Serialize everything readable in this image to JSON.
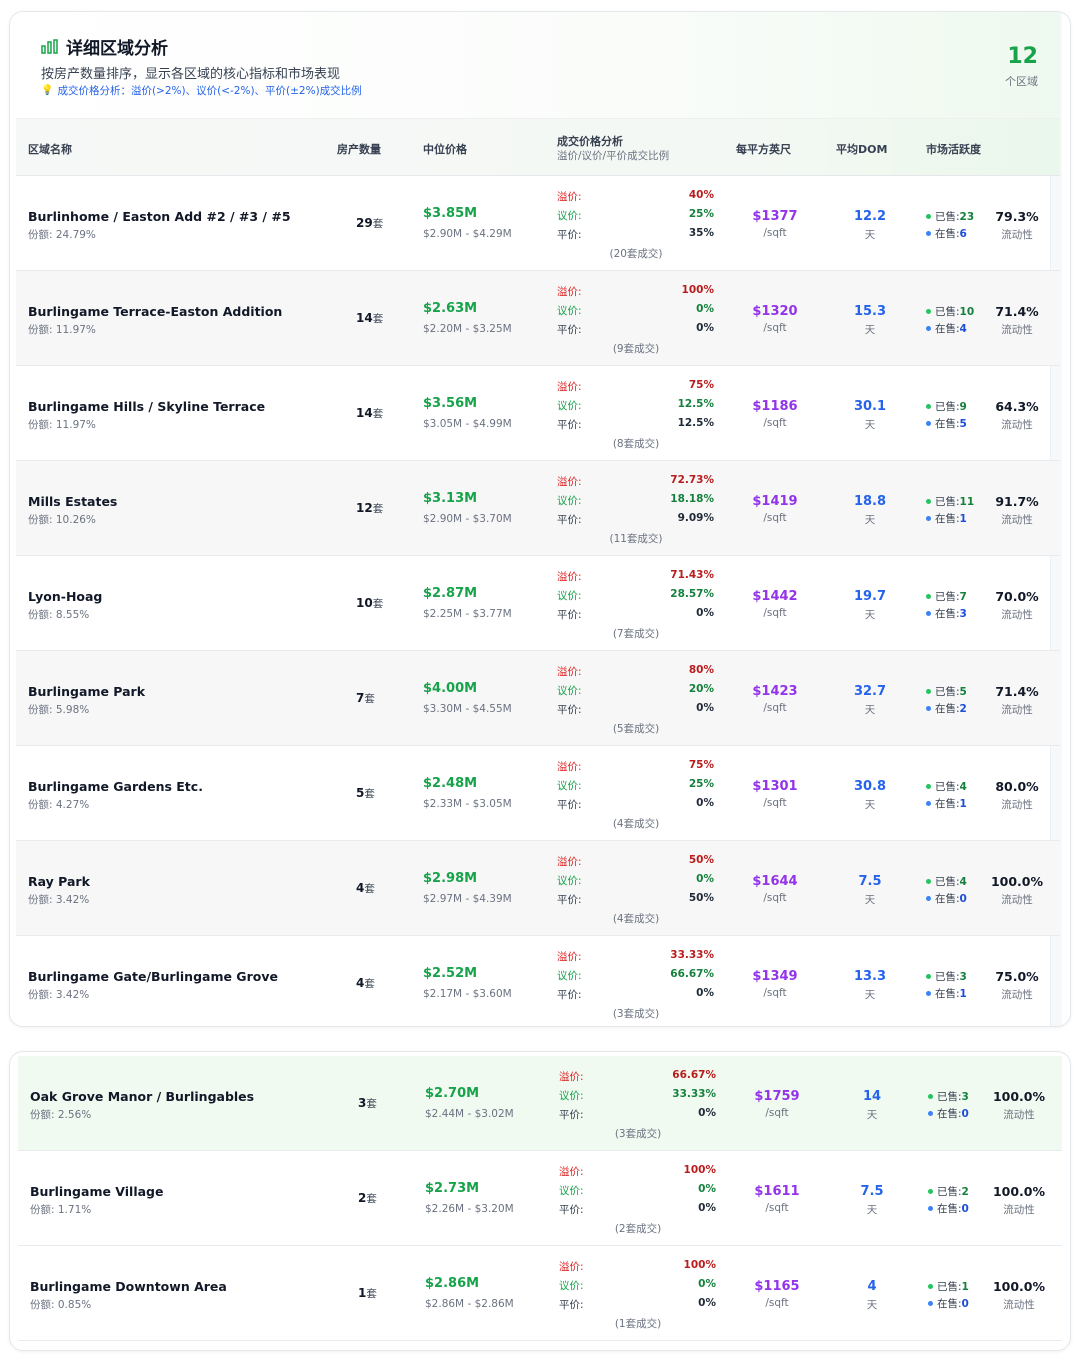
{
  "header": {
    "title": "详细区域分析",
    "subtitle": "按房产数量排序，显示各区域的核心指标和市场表现",
    "hint": "成交价格分析：溢价(>2%)、议价(<-2%)、平价(±2%)成交比例",
    "count": "12",
    "count_label": "个区域"
  },
  "columns": {
    "name": "区域名称",
    "count": "房产数量",
    "median": "中位价格",
    "price_analysis": "成交价格分析",
    "price_analysis_sub": "溢价/议价/平价成交比例",
    "ppsf": "每平方英尺",
    "dom": "平均DOM",
    "activity": "市场活跃度"
  },
  "labels": {
    "premium": "溢价:",
    "discount": "议价:",
    "par": "平价:",
    "count_unit": "套",
    "ppsf_unit": "/sqft",
    "dom_unit": "天",
    "sold": "已售:",
    "active": "在售:",
    "liquidity": "流动性"
  },
  "rows": [
    {
      "name": "Burlinhome / Easton Add #2 / #3 / #5",
      "share": "份额: 24.79%",
      "count": "29",
      "median": "$3.85M",
      "range": "$2.90M - $4.29M",
      "premium": "40%",
      "discount": "25%",
      "par": "35%",
      "deals": "(20套成交)",
      "ppsf": "$1377",
      "dom": "12.2",
      "sold": "23",
      "active": "6",
      "liquidity": "79.3%"
    },
    {
      "name": "Burlingame Terrace-Easton Addition",
      "share": "份额: 11.97%",
      "count": "14",
      "median": "$2.63M",
      "range": "$2.20M - $3.25M",
      "premium": "100%",
      "discount": "0%",
      "par": "0%",
      "deals": "(9套成交)",
      "ppsf": "$1320",
      "dom": "15.3",
      "sold": "10",
      "active": "4",
      "liquidity": "71.4%"
    },
    {
      "name": "Burlingame Hills / Skyline Terrace",
      "share": "份额: 11.97%",
      "count": "14",
      "median": "$3.56M",
      "range": "$3.05M - $4.99M",
      "premium": "75%",
      "discount": "12.5%",
      "par": "12.5%",
      "deals": "(8套成交)",
      "ppsf": "$1186",
      "dom": "30.1",
      "sold": "9",
      "active": "5",
      "liquidity": "64.3%"
    },
    {
      "name": "Mills Estates",
      "share": "份额: 10.26%",
      "count": "12",
      "median": "$3.13M",
      "range": "$2.90M - $3.70M",
      "premium": "72.73%",
      "discount": "18.18%",
      "par": "9.09%",
      "deals": "(11套成交)",
      "ppsf": "$1419",
      "dom": "18.8",
      "sold": "11",
      "active": "1",
      "liquidity": "91.7%"
    },
    {
      "name": "Lyon-Hoag",
      "share": "份额: 8.55%",
      "count": "10",
      "median": "$2.87M",
      "range": "$2.25M - $3.77M",
      "premium": "71.43%",
      "discount": "28.57%",
      "par": "0%",
      "deals": "(7套成交)",
      "ppsf": "$1442",
      "dom": "19.7",
      "sold": "7",
      "active": "3",
      "liquidity": "70.0%"
    },
    {
      "name": "Burlingame Park",
      "share": "份额: 5.98%",
      "count": "7",
      "median": "$4.00M",
      "range": "$3.30M - $4.55M",
      "premium": "80%",
      "discount": "20%",
      "par": "0%",
      "deals": "(5套成交)",
      "ppsf": "$1423",
      "dom": "32.7",
      "sold": "5",
      "active": "2",
      "liquidity": "71.4%"
    },
    {
      "name": "Burlingame Gardens Etc.",
      "share": "份额: 4.27%",
      "count": "5",
      "median": "$2.48M",
      "range": "$2.33M - $3.05M",
      "premium": "75%",
      "discount": "25%",
      "par": "0%",
      "deals": "(4套成交)",
      "ppsf": "$1301",
      "dom": "30.8",
      "sold": "4",
      "active": "1",
      "liquidity": "80.0%"
    },
    {
      "name": "Ray Park",
      "share": "份额: 3.42%",
      "count": "4",
      "median": "$2.98M",
      "range": "$2.97M - $4.39M",
      "premium": "50%",
      "discount": "0%",
      "par": "50%",
      "deals": "(4套成交)",
      "ppsf": "$1644",
      "dom": "7.5",
      "sold": "4",
      "active": "0",
      "liquidity": "100.0%"
    },
    {
      "name": "Burlingame Gate/Burlingame Grove",
      "share": "份额: 3.42%",
      "count": "4",
      "median": "$2.52M",
      "range": "$2.17M - $3.60M",
      "premium": "33.33%",
      "discount": "66.67%",
      "par": "0%",
      "deals": "(3套成交)",
      "ppsf": "$1349",
      "dom": "13.3",
      "sold": "3",
      "active": "1",
      "liquidity": "75.0%"
    }
  ],
  "rows2": [
    {
      "name": "Oak Grove Manor / Burlingables",
      "share": "份额: 2.56%",
      "count": "3",
      "median": "$2.70M",
      "range": "$2.44M - $3.02M",
      "premium": "66.67%",
      "discount": "33.33%",
      "par": "0%",
      "deals": "(3套成交)",
      "ppsf": "$1759",
      "dom": "14",
      "sold": "3",
      "active": "0",
      "liquidity": "100.0%"
    },
    {
      "name": "Burlingame Village",
      "share": "份额: 1.71%",
      "count": "2",
      "median": "$2.73M",
      "range": "$2.26M - $3.20M",
      "premium": "100%",
      "discount": "0%",
      "par": "0%",
      "deals": "(2套成交)",
      "ppsf": "$1611",
      "dom": "7.5",
      "sold": "2",
      "active": "0",
      "liquidity": "100.0%"
    },
    {
      "name": "Burlingame Downtown Area",
      "share": "份额: 0.85%",
      "count": "1",
      "median": "$2.86M",
      "range": "$2.86M - $2.86M",
      "premium": "100%",
      "discount": "0%",
      "par": "0%",
      "deals": "(1套成交)",
      "ppsf": "$1165",
      "dom": "4",
      "sold": "1",
      "active": "0",
      "liquidity": "100.0%"
    }
  ],
  "colors": {
    "green": "#16a34a",
    "purple": "#9333ea",
    "blue": "#2563eb",
    "red": "#dc2626"
  }
}
